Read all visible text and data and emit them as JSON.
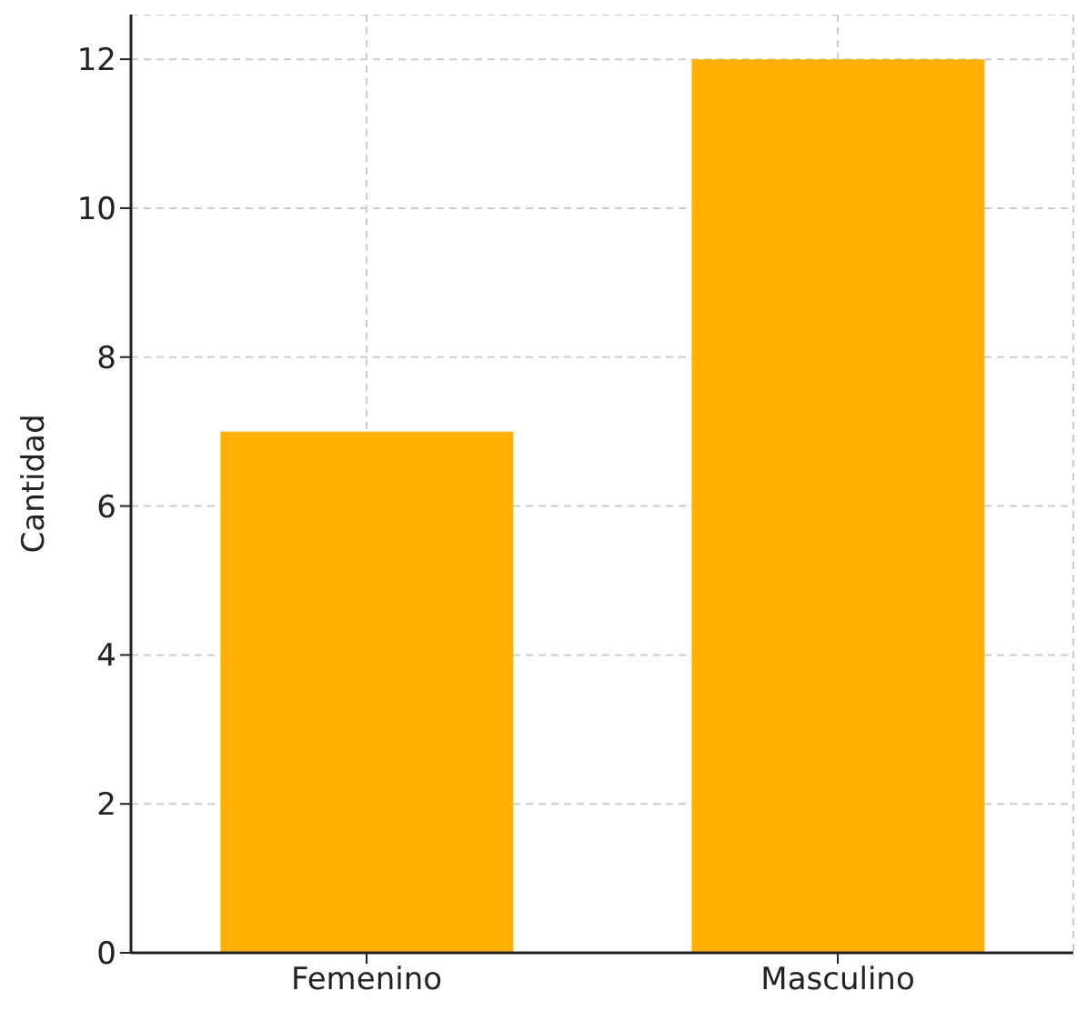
{
  "chart_data": {
    "type": "bar",
    "categories": [
      "Femenino",
      "Masculino"
    ],
    "values": [
      7,
      12
    ],
    "color": "#ffb000",
    "ylabel": "Cantidad",
    "ylim": [
      0,
      12.6
    ],
    "yticks": [
      0,
      2,
      4,
      6,
      8,
      10,
      12
    ],
    "grid": true
  }
}
